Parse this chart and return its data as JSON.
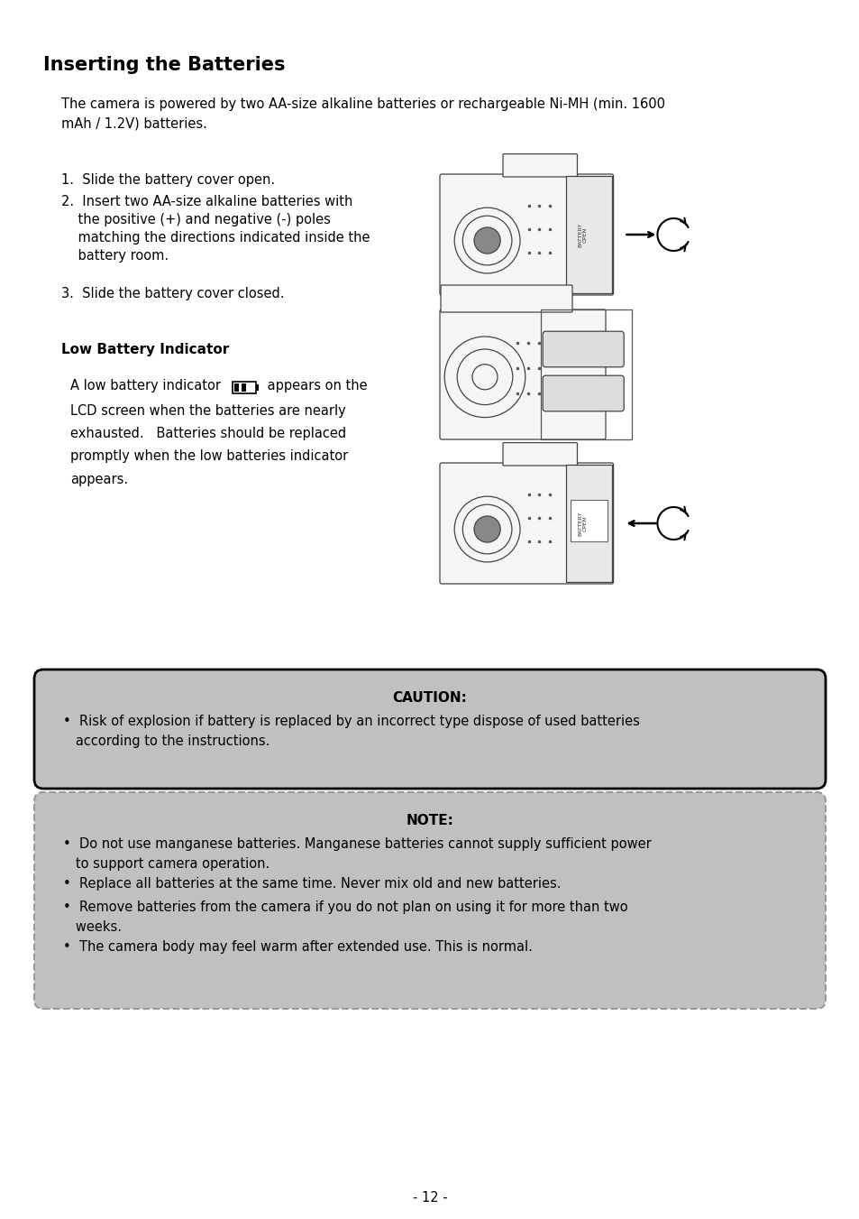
{
  "title": "Inserting the Batteries",
  "bg_color": "#ffffff",
  "text_color": "#000000",
  "page_number": "- 12 -",
  "intro_text": "The camera is powered by two AA-size alkaline batteries or rechargeable Ni-MH (min. 1600\nmAh / 1.2V) batteries.",
  "step1": "1.  Slide the battery cover open.",
  "step2_line1": "2.  Insert two AA-size alkaline batteries with",
  "step2_line2": "    the positive (+) and negative (-) poles",
  "step2_line3": "    matching the directions indicated inside the",
  "step2_line4": "    battery room.",
  "step3": "3.  Slide the battery cover closed.",
  "low_battery_title": "Low Battery Indicator",
  "low_battery_text1a": "A low battery indicator ",
  "low_battery_text1b": " appears on the",
  "low_battery_text2": "LCD screen when the batteries are nearly\nexhausted.   Batteries should be replaced\npromptly when the low batteries indicator\nappears.",
  "caution_title": "CAUTION:",
  "caution_bullet": "Risk of explosion if battery is replaced by an incorrect type dispose of used batteries\n   according to the instructions.",
  "caution_bg": "#c0c0c0",
  "caution_border": "#000000",
  "note_title": "NOTE:",
  "note_bullet1": "Do not use manganese batteries. Manganese batteries cannot supply sufficient power\n   to support camera operation.",
  "note_bullet2": "Replace all batteries at the same time. Never mix old and new batteries.",
  "note_bullet3": "Remove batteries from the camera if you do not plan on using it for more than two\n   weeks.",
  "note_bullet4": "The camera body may feel warm after extended use. This is normal.",
  "note_bg": "#c0c0c0",
  "note_border": "#999999",
  "title_fontsize": 15,
  "body_fontsize": 10.5,
  "section_fontsize": 11
}
